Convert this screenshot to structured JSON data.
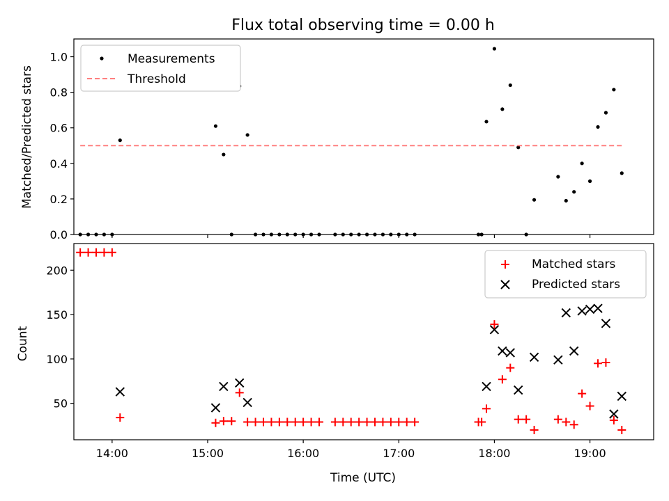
{
  "chart_data": [
    {
      "type": "scatter",
      "title": "Flux total observing time = 0.00 h",
      "xlabel": "",
      "ylabel": "Matched/Predicted stars",
      "xlim": [
        "13:36",
        "19:40"
      ],
      "ylim": [
        0,
        1.1
      ],
      "yticks": [
        "0.0",
        "0.2",
        "0.4",
        "0.6",
        "0.8",
        "1.0"
      ],
      "legend": "top-left",
      "grid": false,
      "series": [
        {
          "name": "Measurements",
          "color": "#000000",
          "marker": "dot",
          "points": [
            [
              "13:40",
              0
            ],
            [
              "13:45",
              0
            ],
            [
              "13:50",
              0
            ],
            [
              "13:55",
              0
            ],
            [
              "14:00",
              0
            ],
            [
              "14:05",
              0.53
            ],
            [
              "15:05",
              0.61
            ],
            [
              "15:10",
              0.45
            ],
            [
              "15:15",
              0
            ],
            [
              "15:20",
              0.835
            ],
            [
              "15:25",
              0.56
            ],
            [
              "15:30",
              0
            ],
            [
              "15:35",
              0
            ],
            [
              "15:40",
              0
            ],
            [
              "15:45",
              0
            ],
            [
              "15:50",
              0
            ],
            [
              "15:55",
              0
            ],
            [
              "16:00",
              0
            ],
            [
              "16:05",
              0
            ],
            [
              "16:10",
              0
            ],
            [
              "16:20",
              0
            ],
            [
              "16:25",
              0
            ],
            [
              "16:30",
              0
            ],
            [
              "16:35",
              0
            ],
            [
              "16:40",
              0
            ],
            [
              "16:45",
              0
            ],
            [
              "16:50",
              0
            ],
            [
              "16:55",
              0
            ],
            [
              "17:00",
              0
            ],
            [
              "17:05",
              0
            ],
            [
              "17:10",
              0
            ],
            [
              "17:50",
              0
            ],
            [
              "17:52",
              0
            ],
            [
              "17:55",
              0.635
            ],
            [
              "18:00",
              1.045
            ],
            [
              "18:05",
              0.705
            ],
            [
              "18:10",
              0.84
            ],
            [
              "18:15",
              0.49
            ],
            [
              "18:20",
              0
            ],
            [
              "18:25",
              0.195
            ],
            [
              "18:40",
              0.325
            ],
            [
              "18:45",
              0.19
            ],
            [
              "18:50",
              0.24
            ],
            [
              "18:55",
              0.4
            ],
            [
              "19:00",
              0.3
            ],
            [
              "19:05",
              0.605
            ],
            [
              "19:10",
              0.685
            ],
            [
              "19:15",
              0.815
            ],
            [
              "19:20",
              0.345
            ]
          ]
        },
        {
          "name": "Threshold",
          "color": "#ff8080",
          "style": "dashed",
          "points": [
            [
              "13:40",
              0.5
            ],
            [
              "19:20",
              0.5
            ]
          ]
        }
      ]
    },
    {
      "type": "scatter",
      "title": "",
      "xlabel": "Time (UTC)",
      "ylabel": "Count",
      "xlim": [
        "13:36",
        "19:40"
      ],
      "ylim": [
        9,
        230
      ],
      "xticks": [
        "14:00",
        "15:00",
        "16:00",
        "17:00",
        "18:00",
        "19:00"
      ],
      "yticks": [
        "50",
        "100",
        "150",
        "200"
      ],
      "legend": "top-right",
      "grid": false,
      "series": [
        {
          "name": "Matched stars",
          "color": "#ff0000",
          "marker": "plus",
          "points": [
            [
              "13:40",
              220
            ],
            [
              "13:45",
              220
            ],
            [
              "13:50",
              220
            ],
            [
              "13:55",
              220
            ],
            [
              "14:00",
              220
            ],
            [
              "14:05",
              34
            ],
            [
              "15:05",
              28
            ],
            [
              "15:10",
              30
            ],
            [
              "15:15",
              30
            ],
            [
              "15:20",
              62
            ],
            [
              "15:25",
              29
            ],
            [
              "15:30",
              29
            ],
            [
              "15:35",
              29
            ],
            [
              "15:40",
              29
            ],
            [
              "15:45",
              29
            ],
            [
              "15:50",
              29
            ],
            [
              "15:55",
              29
            ],
            [
              "16:00",
              29
            ],
            [
              "16:05",
              29
            ],
            [
              "16:10",
              29
            ],
            [
              "16:20",
              29
            ],
            [
              "16:25",
              29
            ],
            [
              "16:30",
              29
            ],
            [
              "16:35",
              29
            ],
            [
              "16:40",
              29
            ],
            [
              "16:45",
              29
            ],
            [
              "16:50",
              29
            ],
            [
              "16:55",
              29
            ],
            [
              "17:00",
              29
            ],
            [
              "17:05",
              29
            ],
            [
              "17:10",
              29
            ],
            [
              "17:50",
              29
            ],
            [
              "17:52",
              29
            ],
            [
              "17:55",
              44
            ],
            [
              "18:00",
              139
            ],
            [
              "18:05",
              77
            ],
            [
              "18:10",
              90
            ],
            [
              "18:15",
              32
            ],
            [
              "18:20",
              32
            ],
            [
              "18:25",
              20
            ],
            [
              "18:40",
              32
            ],
            [
              "18:45",
              29
            ],
            [
              "18:50",
              26
            ],
            [
              "18:55",
              61
            ],
            [
              "19:00",
              47
            ],
            [
              "19:05",
              95
            ],
            [
              "19:10",
              96
            ],
            [
              "19:15",
              31
            ],
            [
              "19:20",
              20
            ]
          ]
        },
        {
          "name": "Predicted stars",
          "color": "#000000",
          "marker": "x",
          "points": [
            [
              "14:05",
              63
            ],
            [
              "15:05",
              45
            ],
            [
              "15:10",
              69
            ],
            [
              "15:20",
              73
            ],
            [
              "15:25",
              51
            ],
            [
              "17:55",
              69
            ],
            [
              "18:00",
              133
            ],
            [
              "18:05",
              109
            ],
            [
              "18:10",
              107
            ],
            [
              "18:15",
              65
            ],
            [
              "18:25",
              102
            ],
            [
              "18:40",
              99
            ],
            [
              "18:45",
              152
            ],
            [
              "18:50",
              109
            ],
            [
              "18:55",
              154
            ],
            [
              "19:00",
              156
            ],
            [
              "19:05",
              157
            ],
            [
              "19:10",
              140
            ],
            [
              "19:15",
              38
            ],
            [
              "19:20",
              58
            ]
          ]
        }
      ]
    }
  ]
}
